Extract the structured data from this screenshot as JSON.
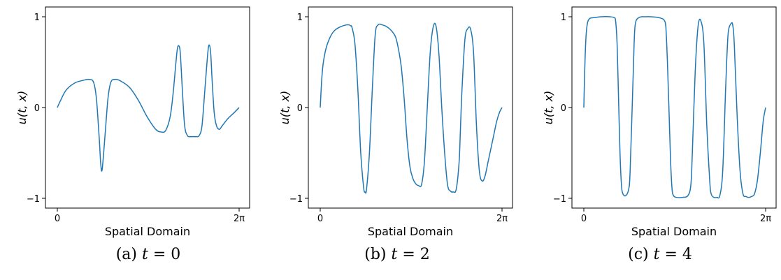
{
  "chart_data": [
    {
      "type": "line",
      "ylabel": "u(t, x)",
      "xlabel": "Spatial Domain",
      "x_ticks": [
        "0",
        "2π"
      ],
      "y_ticks": [
        "−1",
        "0",
        "1"
      ],
      "xlim": [
        0,
        6.283
      ],
      "ylim": [
        -1.1,
        1.1
      ],
      "caption": {
        "prefix": "(a)",
        "var": "t",
        "rest": " = 0"
      },
      "series": [
        {
          "color": "#1f77b4",
          "x": [
            0,
            0.1,
            0.3,
            0.6,
            0.9,
            1.1,
            1.25,
            1.35,
            1.45,
            1.5,
            1.55,
            1.65,
            1.75,
            1.85,
            2.0,
            2.2,
            2.5,
            2.8,
            3.1,
            3.4,
            3.6,
            3.75,
            3.9,
            4.0,
            4.1,
            4.15,
            4.2,
            4.25,
            4.32,
            4.4,
            4.5,
            4.6,
            4.7,
            4.8,
            4.9,
            5.0,
            5.1,
            5.2,
            5.25,
            5.3,
            5.35,
            5.42,
            5.5,
            5.6,
            5.7,
            5.9,
            6.1,
            6.283
          ],
          "y": [
            0,
            0.07,
            0.19,
            0.27,
            0.3,
            0.31,
            0.28,
            0.1,
            -0.35,
            -0.62,
            -0.68,
            -0.3,
            0.1,
            0.28,
            0.31,
            0.29,
            0.22,
            0.08,
            -0.1,
            -0.24,
            -0.27,
            -0.25,
            -0.1,
            0.15,
            0.5,
            0.65,
            0.68,
            0.6,
            0.2,
            -0.2,
            -0.31,
            -0.32,
            -0.32,
            -0.32,
            -0.31,
            -0.2,
            0.2,
            0.6,
            0.69,
            0.6,
            0.3,
            -0.05,
            -0.2,
            -0.24,
            -0.2,
            -0.12,
            -0.06,
            0
          ]
        }
      ]
    },
    {
      "type": "line",
      "ylabel": "u(t, x)",
      "xlabel": "Spatial Domain",
      "x_ticks": [
        "0",
        "2π"
      ],
      "y_ticks": [
        "−1",
        "0",
        "1"
      ],
      "xlim": [
        0,
        6.283
      ],
      "ylim": [
        -1.1,
        1.1
      ],
      "caption": {
        "prefix": "(b)",
        "var": "t",
        "rest": " = 2"
      },
      "series": [
        {
          "color": "#1f77b4",
          "x": [
            0,
            0.05,
            0.1,
            0.2,
            0.35,
            0.5,
            0.7,
            0.9,
            1.0,
            1.05,
            1.1,
            1.2,
            1.3,
            1.4,
            1.5,
            1.55,
            1.6,
            1.7,
            1.8,
            1.9,
            2.0,
            2.15,
            2.3,
            2.45,
            2.6,
            2.7,
            2.8,
            2.9,
            3.0,
            3.1,
            3.2,
            3.3,
            3.4,
            3.5,
            3.6,
            3.7,
            3.8,
            3.9,
            4.0,
            4.1,
            4.2,
            4.3,
            4.4,
            4.5,
            4.6,
            4.7,
            4.8,
            4.85,
            4.9,
            5.0,
            5.1,
            5.2,
            5.3,
            5.4,
            5.5,
            5.6,
            5.7,
            5.8,
            5.9,
            6.0,
            6.1,
            6.2,
            6.283
          ],
          "y": [
            0,
            0.3,
            0.48,
            0.65,
            0.78,
            0.85,
            0.89,
            0.91,
            0.91,
            0.9,
            0.88,
            0.7,
            0.2,
            -0.5,
            -0.88,
            -0.93,
            -0.9,
            -0.5,
            0.2,
            0.8,
            0.91,
            0.91,
            0.89,
            0.85,
            0.78,
            0.65,
            0.45,
            0.1,
            -0.35,
            -0.65,
            -0.78,
            -0.84,
            -0.86,
            -0.85,
            -0.6,
            0.0,
            0.6,
            0.88,
            0.9,
            0.6,
            0.0,
            -0.5,
            -0.85,
            -0.92,
            -0.93,
            -0.9,
            -0.6,
            -0.2,
            0.2,
            0.75,
            0.87,
            0.86,
            0.6,
            -0.2,
            -0.7,
            -0.81,
            -0.75,
            -0.6,
            -0.45,
            -0.3,
            -0.15,
            -0.05,
            0
          ]
        }
      ]
    },
    {
      "type": "line",
      "ylabel": "u(t, x)",
      "xlabel": "Spatial Domain",
      "x_ticks": [
        "0",
        "2π"
      ],
      "y_ticks": [
        "−1",
        "0",
        "1"
      ],
      "xlim": [
        0,
        6.283
      ],
      "ylim": [
        -1.1,
        1.1
      ],
      "caption": {
        "prefix": "(c)",
        "var": "t",
        "rest": " = 4"
      },
      "series": [
        {
          "color": "#1f77b4",
          "x": [
            0,
            0.03,
            0.07,
            0.12,
            0.2,
            0.35,
            0.6,
            0.9,
            1.05,
            1.1,
            1.15,
            1.2,
            1.25,
            1.3,
            1.35,
            1.45,
            1.55,
            1.6,
            1.7,
            1.75,
            1.8,
            1.9,
            2.0,
            2.1,
            2.3,
            2.6,
            2.8,
            2.85,
            2.9,
            2.95,
            3.0,
            3.05,
            3.1,
            3.2,
            3.4,
            3.6,
            3.7,
            3.75,
            3.85,
            3.95,
            4.05,
            4.15,
            4.25,
            4.35,
            4.4,
            4.5,
            4.6,
            4.7,
            4.8,
            4.9,
            4.95,
            5.0,
            5.1,
            5.15,
            5.2,
            5.3,
            5.4,
            5.5,
            5.6,
            5.7,
            5.8,
            5.9,
            6.0,
            6.1,
            6.2,
            6.283
          ],
          "y": [
            0,
            0.4,
            0.75,
            0.92,
            0.98,
            0.99,
            1.0,
            1.0,
            0.99,
            0.95,
            0.7,
            0.1,
            -0.5,
            -0.85,
            -0.95,
            -0.97,
            -0.9,
            -0.7,
            0.3,
            0.8,
            0.95,
            0.99,
            1.0,
            1.0,
            1.0,
            0.99,
            0.95,
            0.8,
            0.4,
            -0.1,
            -0.6,
            -0.9,
            -0.97,
            -0.99,
            -0.99,
            -0.97,
            -0.85,
            -0.5,
            0.4,
            0.9,
            0.95,
            0.7,
            -0.2,
            -0.8,
            -0.95,
            -0.99,
            -0.99,
            -0.97,
            -0.7,
            0.2,
            0.6,
            0.85,
            0.93,
            0.9,
            0.7,
            -0.1,
            -0.7,
            -0.95,
            -0.98,
            -0.99,
            -0.98,
            -0.95,
            -0.8,
            -0.5,
            -0.15,
            0
          ]
        }
      ]
    }
  ]
}
